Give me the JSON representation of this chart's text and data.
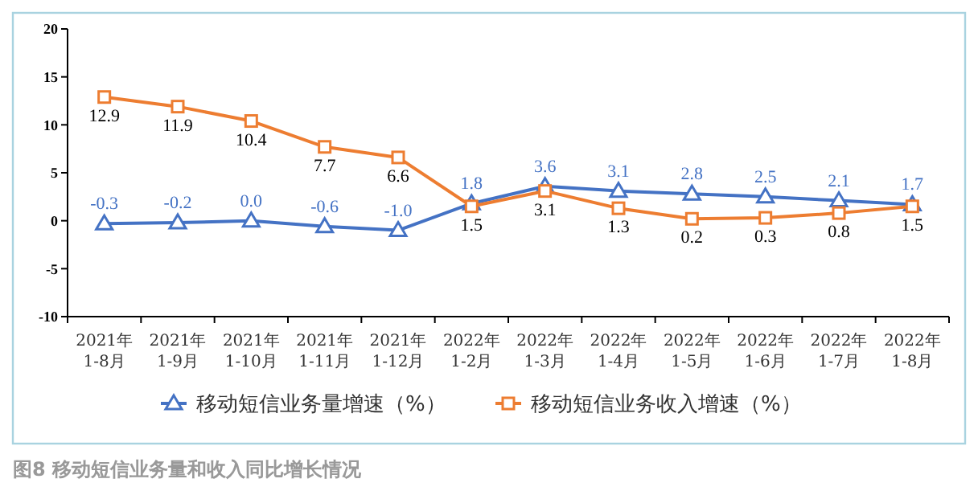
{
  "chart_data": {
    "type": "line",
    "title": "图8 移动短信业务量和收入同比增长情况",
    "categories": [
      "2021年\n1-8月",
      "2021年\n1-9月",
      "2021年\n1-10月",
      "2021年\n1-11月",
      "2021年\n1-12月",
      "2022年\n1-2月",
      "2022年\n1-3月",
      "2022年\n1-4月",
      "2022年\n1-5月",
      "2022年\n1-6月",
      "2022年\n1-7月",
      "2022年\n1-8月"
    ],
    "series": [
      {
        "name": "移动短信业务量增速（%）",
        "color": "#4472c4",
        "marker": "triangle",
        "values": [
          -0.3,
          -0.2,
          0.0,
          -0.6,
          -1.0,
          1.8,
          3.6,
          3.1,
          2.8,
          2.5,
          2.1,
          1.7
        ],
        "value_labels": [
          "-0.3",
          "-0.2",
          "0.0",
          "-0.6",
          "-1.0",
          "1.8",
          "3.6",
          "3.1",
          "2.8",
          "2.5",
          "2.1",
          "1.7"
        ]
      },
      {
        "name": "移动短信业务收入增速（%）",
        "color": "#ed7d31",
        "marker": "square",
        "values": [
          12.9,
          11.9,
          10.4,
          7.7,
          6.6,
          1.5,
          3.1,
          1.3,
          0.2,
          0.3,
          0.8,
          1.5
        ],
        "value_labels": [
          "12.9",
          "11.9",
          "10.4",
          "7.7",
          "6.6",
          "1.5",
          "3.1",
          "1.3",
          "0.2",
          "0.3",
          "0.8",
          "1.5"
        ]
      }
    ],
    "ylim": [
      -10,
      20
    ],
    "yticks": [
      -10,
      -5,
      0,
      5,
      10,
      15,
      20
    ],
    "legend": "bottom",
    "grid": false
  }
}
